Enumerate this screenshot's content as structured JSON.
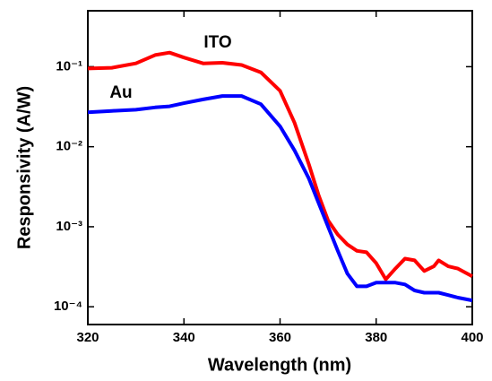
{
  "chart_data": {
    "type": "line",
    "x_label": "Wavelength (nm)",
    "y_label": "Responsivity (A/W)",
    "log_y": true,
    "xlim": [
      320,
      400
    ],
    "xticks": [
      320,
      340,
      360,
      380,
      400
    ],
    "ylim": [
      6e-05,
      0.5
    ],
    "yticks": [
      {
        "value": 0.0001,
        "label": "10⁻⁴"
      },
      {
        "value": 0.001,
        "label": "10⁻³"
      },
      {
        "value": 0.01,
        "label": "10⁻²"
      },
      {
        "value": 0.1,
        "label": "10⁻¹"
      }
    ],
    "x": [
      320,
      325,
      330,
      334,
      337,
      340,
      344,
      348,
      352,
      356,
      360,
      363,
      366,
      368,
      370,
      372,
      374,
      376,
      378,
      380,
      382,
      384,
      386,
      388,
      390,
      392,
      393,
      395,
      397,
      400
    ],
    "series": [
      {
        "name": "ITO",
        "color": "#ff0000",
        "values": [
          0.095,
          0.097,
          0.11,
          0.14,
          0.15,
          0.13,
          0.11,
          0.112,
          0.105,
          0.085,
          0.05,
          0.02,
          0.006,
          0.0025,
          0.0012,
          0.0008,
          0.0006,
          0.0005,
          0.00048,
          0.00035,
          0.00022,
          0.0003,
          0.0004,
          0.00038,
          0.00028,
          0.00032,
          0.00038,
          0.00032,
          0.0003,
          0.00024
        ]
      },
      {
        "name": "Au",
        "color": "#0000ff",
        "values": [
          0.027,
          0.028,
          0.029,
          0.031,
          0.032,
          0.035,
          0.039,
          0.043,
          0.043,
          0.034,
          0.018,
          0.009,
          0.004,
          0.002,
          0.001,
          0.0005,
          0.00026,
          0.00018,
          0.00018,
          0.0002,
          0.0002,
          0.0002,
          0.00019,
          0.00016,
          0.00015,
          0.00015,
          0.00015,
          0.00014,
          0.00013,
          0.00012
        ]
      }
    ]
  }
}
